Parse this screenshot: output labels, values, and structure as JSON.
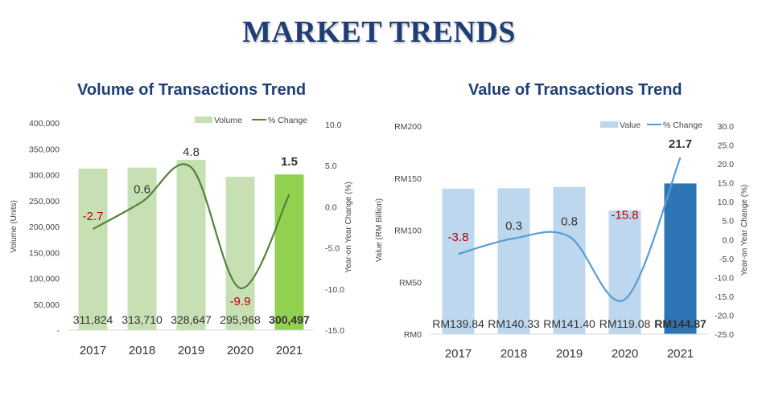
{
  "page": {
    "title": "MARKET TRENDS"
  },
  "charts": {
    "volume": {
      "title": "Volume of Transactions Trend",
      "legend": {
        "bar": "Volume",
        "line": "% Change"
      },
      "ylabel": "Volume (Units)",
      "y2label": "Year-on Year Change (%)",
      "yticks": [
        "-",
        "50,000",
        "100,000",
        "150,000",
        "200,000",
        "250,000",
        "300,000",
        "350,000",
        "400,000"
      ],
      "y2ticks": [
        "-15.0",
        "-10.0",
        "-5.0",
        "0.0",
        "5.0",
        "10.0"
      ]
    },
    "value": {
      "title": "Value of Transactions Trend",
      "legend": {
        "bar": "Value",
        "line": "% Change"
      },
      "ylabel": "Value (RM Billion)",
      "y2label": "Year-on Year Change (%)",
      "yticks": [
        "RM0",
        "RM50",
        "RM100",
        "RM150",
        "RM200"
      ],
      "y2ticks": [
        "-25.0",
        "-20.0",
        "-15.0",
        "-10.0",
        "-5.0",
        "0.0",
        "5.0",
        "10.0",
        "15.0",
        "20.0",
        "25.0",
        "30.0"
      ]
    }
  },
  "chart_data": [
    {
      "type": "bar",
      "title": "Volume of Transactions Trend",
      "categories": [
        "2017",
        "2018",
        "2019",
        "2020",
        "2021"
      ],
      "series": [
        {
          "name": "Volume",
          "type": "bar",
          "axis": "left",
          "values": [
            311824,
            313710,
            328647,
            295968,
            300497
          ],
          "labels": [
            "311,824",
            "313,710",
            "328,647",
            "295,968",
            "300,497"
          ]
        },
        {
          "name": "% Change",
          "type": "line",
          "axis": "right",
          "values": [
            -2.7,
            0.6,
            4.8,
            -9.9,
            1.5
          ],
          "labels": [
            "-2.7",
            "0.6",
            "4.8",
            "-9.9",
            "1.5"
          ]
        }
      ],
      "ylabel": "Volume (Units)",
      "ylim": [
        0,
        400000
      ],
      "y2label": "Year-on Year Change (%)",
      "y2lim": [
        -15,
        10
      ],
      "colors": {
        "bar": "#c6e0b4",
        "bar_highlight": "#92d050",
        "line": "#548235",
        "negative_label": "#c00000"
      },
      "highlight_index": 4,
      "legend": "top-right"
    },
    {
      "type": "bar",
      "title": "Value of Transactions Trend",
      "categories": [
        "2017",
        "2018",
        "2019",
        "2020",
        "2021"
      ],
      "series": [
        {
          "name": "Value",
          "type": "bar",
          "axis": "left",
          "values": [
            139.84,
            140.33,
            141.4,
            119.08,
            144.87
          ],
          "labels": [
            "RM139.84",
            "RM140.33",
            "RM141.40",
            "RM119.08",
            "RM144.87"
          ]
        },
        {
          "name": "% Change",
          "type": "line",
          "axis": "right",
          "values": [
            -3.8,
            0.3,
            0.8,
            -15.8,
            21.7
          ],
          "labels": [
            "-3.8",
            "0.3",
            "0.8",
            "-15.8",
            "21.7"
          ]
        }
      ],
      "ylabel": "Value (RM Billion)",
      "ylim": [
        0,
        200
      ],
      "y2label": "Year-on Year Change (%)",
      "y2lim": [
        -25,
        30
      ],
      "colors": {
        "bar": "#bdd7ee",
        "bar_highlight": "#2e75b6",
        "line": "#5b9bd5",
        "negative_label": "#c00000"
      },
      "highlight_index": 4,
      "legend": "top-right"
    }
  ]
}
